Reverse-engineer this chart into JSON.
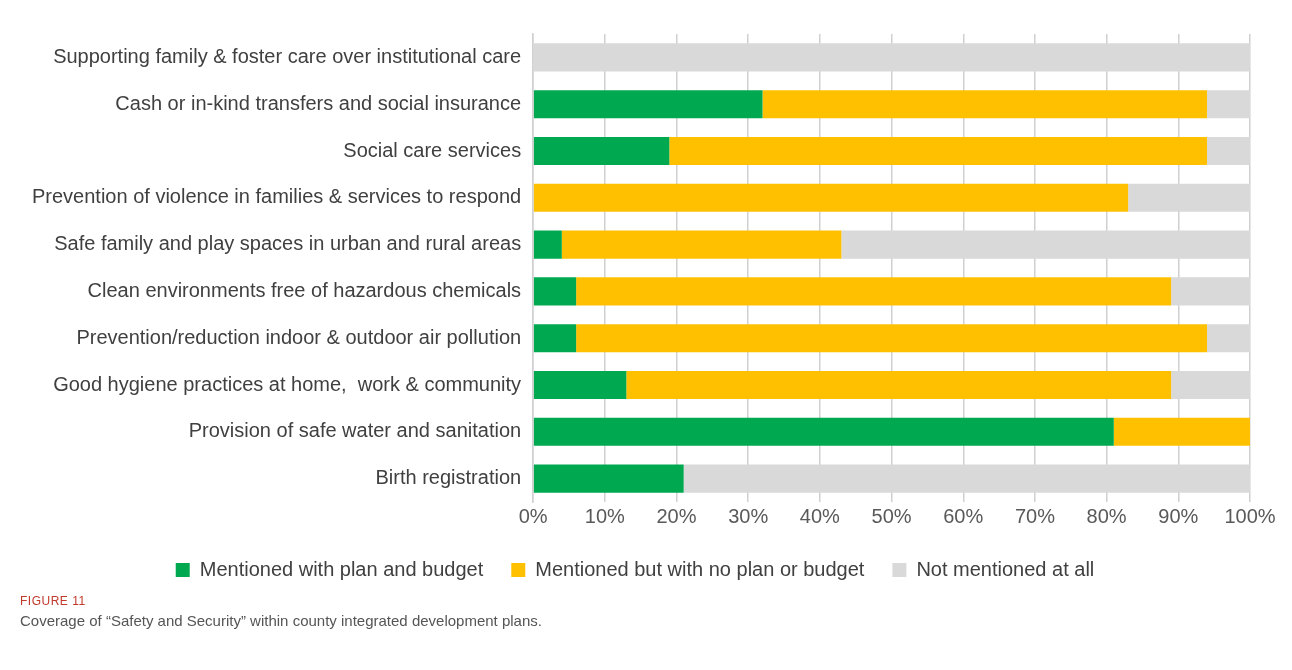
{
  "chart_data": {
    "type": "bar",
    "orientation": "horizontal",
    "stacked": true,
    "categories": [
      "Supporting family & foster care over institutional care",
      "Cash or in-kind transfers and social insurance",
      "Social care services",
      "Prevention of violence in families & services to respond",
      "Safe family and play spaces in urban and rural areas",
      "Clean environments free of hazardous chemicals",
      "Prevention/reduction indoor & outdoor air pollution",
      "Good hygiene practices at home,  work & community",
      "Provision of safe water and sanitation",
      "Birth registration"
    ],
    "series": [
      {
        "name": "Mentioned with plan and budget",
        "color": "#00a84f",
        "values": [
          0,
          32,
          19,
          0,
          4,
          6,
          6,
          13,
          81,
          21
        ]
      },
      {
        "name": "Mentioned but with no plan or budget",
        "color": "#ffc000",
        "values": [
          0,
          62,
          75,
          83,
          39,
          83,
          88,
          76,
          19,
          0
        ]
      },
      {
        "name": "Not mentioned at all",
        "color": "#d9d9d9",
        "values": [
          100,
          6,
          6,
          17,
          57,
          11,
          6,
          11,
          0,
          79
        ]
      }
    ],
    "xlim": [
      0,
      100
    ],
    "xticks": [
      {
        "value": 0,
        "label": "0%"
      },
      {
        "value": 10,
        "label": "10%"
      },
      {
        "value": 20,
        "label": "20%"
      },
      {
        "value": 30,
        "label": "30%"
      },
      {
        "value": 40,
        "label": "40%"
      },
      {
        "value": 50,
        "label": "50%"
      },
      {
        "value": 60,
        "label": "60%"
      },
      {
        "value": 70,
        "label": "70%"
      },
      {
        "value": 80,
        "label": "80%"
      },
      {
        "value": 90,
        "label": "90%"
      },
      {
        "value": 100,
        "label": "100%"
      }
    ],
    "grid": "x",
    "legend": "bottom",
    "annotations": [
      "FIGURE 11",
      "Coverage of “Safety and Security” within county integrated development plans."
    ]
  }
}
